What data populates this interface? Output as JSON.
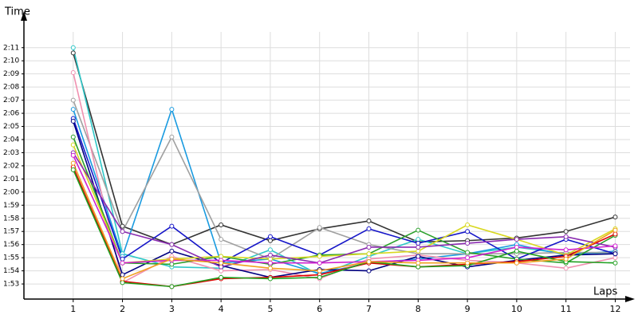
{
  "chart_data": {
    "type": "line",
    "y_label": "Time",
    "x_label": "Laps",
    "x": [
      1,
      2,
      3,
      4,
      5,
      6,
      7,
      8,
      9,
      10,
      11,
      12
    ],
    "xlim": [
      0,
      12.3
    ],
    "xticks": [
      1,
      2,
      3,
      4,
      5,
      6,
      7,
      8,
      9,
      10,
      11,
      12
    ],
    "ylim": [
      111.85,
      132.2
    ],
    "yticks": [
      {
        "value": 113,
        "label": "1:53"
      },
      {
        "value": 114,
        "label": "1:54"
      },
      {
        "value": 115,
        "label": "1:55"
      },
      {
        "value": 116,
        "label": "1:56"
      },
      {
        "value": 117,
        "label": "1:57"
      },
      {
        "value": 118,
        "label": "1:58"
      },
      {
        "value": 119,
        "label": "1:59"
      },
      {
        "value": 120,
        "label": "2:00"
      },
      {
        "value": 121,
        "label": "2:01"
      },
      {
        "value": 122,
        "label": "2:02"
      },
      {
        "value": 123,
        "label": "2:03"
      },
      {
        "value": 124,
        "label": "2:04"
      },
      {
        "value": 125,
        "label": "2:05"
      },
      {
        "value": 126,
        "label": "2:06"
      },
      {
        "value": 127,
        "label": "2:07"
      },
      {
        "value": 128,
        "label": "2:08"
      },
      {
        "value": 129,
        "label": "2:09"
      },
      {
        "value": 130,
        "label": "2:10"
      },
      {
        "value": 131,
        "label": "2:11"
      }
    ],
    "grid": true,
    "series": [
      {
        "color": "#333333",
        "values": [
          130.6,
          117.4,
          116.0,
          117.5,
          116.3,
          117.2,
          117.8,
          116.2,
          116.3,
          116.5,
          117.0,
          118.1
        ]
      },
      {
        "color": "#30c8c8",
        "values": [
          131.0,
          115.3,
          114.3,
          114.2,
          115.6,
          113.7,
          115.1,
          116.4,
          115.3,
          115.8,
          115.3,
          115.4
        ]
      },
      {
        "color": "#1a9be0",
        "values": [
          126.3,
          115.1,
          126.3,
          114.6,
          114.9,
          113.8,
          114.6,
          114.9,
          115.3,
          116.0,
          115.2,
          115.5
        ]
      },
      {
        "color": "#a0a0a0",
        "values": [
          127.0,
          117.0,
          124.2,
          116.4,
          114.9,
          117.3,
          116.0,
          115.3,
          115.3,
          115.3,
          115.4,
          115.4
        ]
      },
      {
        "color": "#f090b0",
        "values": [
          129.1,
          113.1,
          115.1,
          114.0,
          114.1,
          113.4,
          114.9,
          115.2,
          114.8,
          114.6,
          114.2,
          115.0
        ]
      },
      {
        "color": "#1515c8",
        "values": [
          125.6,
          114.9,
          117.4,
          114.6,
          116.6,
          115.2,
          117.2,
          116.1,
          117.0,
          114.9,
          116.4,
          115.3
        ]
      },
      {
        "color": "#000080",
        "values": [
          125.4,
          113.7,
          115.5,
          114.4,
          113.5,
          114.1,
          114.0,
          115.1,
          114.3,
          114.8,
          115.2,
          115.3
        ]
      },
      {
        "color": "#2aa02a",
        "values": [
          124.2,
          114.6,
          114.5,
          115.1,
          114.5,
          115.2,
          115.3,
          117.1,
          115.4,
          114.9,
          114.6,
          116.7
        ]
      },
      {
        "color": "#d8d820",
        "values": [
          123.6,
          114.6,
          114.9,
          115.1,
          114.9,
          115.1,
          115.3,
          115.5,
          117.5,
          116.4,
          115.2,
          117.2
        ]
      },
      {
        "color": "#8a2bb0",
        "values": [
          123.0,
          117.0,
          116.0,
          114.3,
          115.2,
          114.6,
          115.8,
          115.8,
          116.1,
          116.4,
          116.6,
          115.8
        ]
      },
      {
        "color": "#d020d0",
        "values": [
          122.8,
          114.6,
          114.8,
          114.8,
          114.6,
          114.6,
          114.7,
          114.8,
          115.0,
          115.8,
          115.6,
          115.9
        ]
      },
      {
        "color": "#e00000",
        "values": [
          121.9,
          113.2,
          112.8,
          113.4,
          113.5,
          113.7,
          114.6,
          114.3,
          114.5,
          114.7,
          115.1,
          116.8
        ]
      },
      {
        "color": "#20a020",
        "values": [
          121.7,
          113.1,
          112.8,
          113.5,
          113.4,
          113.5,
          114.7,
          114.3,
          114.4,
          115.5,
          114.7,
          114.6
        ]
      },
      {
        "color": "#f0a020",
        "values": [
          122.2,
          113.4,
          114.9,
          114.6,
          114.2,
          114.0,
          114.7,
          114.6,
          114.6,
          114.6,
          114.9,
          117.1
        ]
      }
    ]
  }
}
